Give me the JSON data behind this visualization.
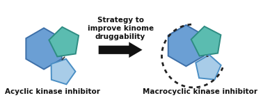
{
  "background_color": "#ffffff",
  "left_label": "Acyclic kinase inhibitor",
  "right_label": "Macrocyclic kinase inhibitor",
  "arrow_label_lines": [
    "Strategy to",
    "improve kinome",
    "druggability"
  ],
  "hex_fill": "#6b9fd4",
  "hex_edge": "#3d6fa8",
  "teal_fill": "#5bbcb0",
  "teal_edge": "#2e8c82",
  "lpent_fill": "#a8cce8",
  "lpent_edge": "#4a8ec4",
  "arrow_color": "#111111",
  "dashed_color": "#222222",
  "label_fontsize": 7.5,
  "arrow_label_fontsize": 7.5,
  "figsize": [
    3.78,
    1.54
  ],
  "dpi": 100,
  "lw": 1.4
}
